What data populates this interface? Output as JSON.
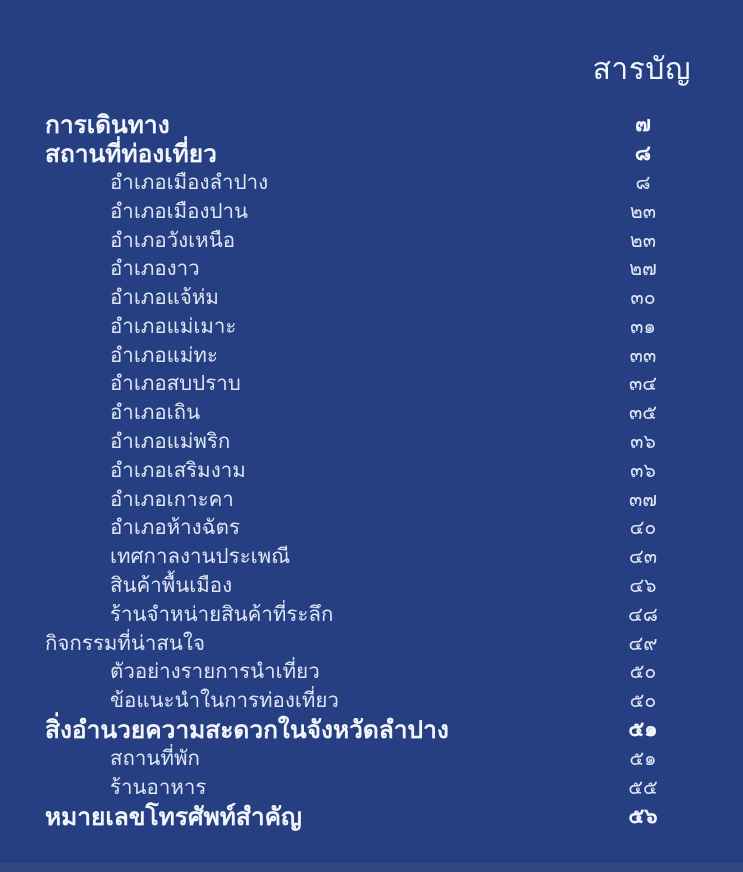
{
  "theme": {
    "background_color": "#263e82",
    "text_color": "#dfe6f3",
    "bold_text_color": "#f2f6fb",
    "bottom_edge_color": "#33497f"
  },
  "page": {
    "title": "สารบัญ"
  },
  "toc": {
    "entries": [
      {
        "label": "การเดินทาง",
        "page": "๗",
        "level": "main",
        "bold": true
      },
      {
        "label": "สถานที่ท่องเที่ยว",
        "page": "๘",
        "level": "main",
        "bold": true
      },
      {
        "label": "อำเภอเมืองลำปาง",
        "page": "๘",
        "level": "sub",
        "bold": false
      },
      {
        "label": "อำเภอเมืองปาน",
        "page": "๒๓",
        "level": "sub",
        "bold": false
      },
      {
        "label": "อำเภอวังเหนือ",
        "page": "๒๓",
        "level": "sub",
        "bold": false
      },
      {
        "label": "อำเภองาว",
        "page": "๒๗",
        "level": "sub",
        "bold": false
      },
      {
        "label": "อำเภอแจ้ห่ม",
        "page": "๓๐",
        "level": "sub",
        "bold": false
      },
      {
        "label": "อำเภอแม่เมาะ",
        "page": "๓๑",
        "level": "sub",
        "bold": false
      },
      {
        "label": "อำเภอแม่ทะ",
        "page": "๓๓",
        "level": "sub",
        "bold": false
      },
      {
        "label": "อำเภอสบปราบ",
        "page": "๓๔",
        "level": "sub",
        "bold": false
      },
      {
        "label": "อำเภอเถิน",
        "page": "๓๕",
        "level": "sub",
        "bold": false
      },
      {
        "label": "อำเภอแม่พริก",
        "page": "๓๖",
        "level": "sub",
        "bold": false
      },
      {
        "label": "อำเภอเสริมงาม",
        "page": "๓๖",
        "level": "sub",
        "bold": false
      },
      {
        "label": "อำเภอเกาะคา",
        "page": "๓๗",
        "level": "sub",
        "bold": false
      },
      {
        "label": "อำเภอห้างฉัตร",
        "page": "๔๐",
        "level": "sub",
        "bold": false
      },
      {
        "label": "เทศกาลงานประเพณี",
        "page": "๔๓",
        "level": "sub",
        "bold": false
      },
      {
        "label": "สินค้าพื้นเมือง",
        "page": "๔๖",
        "level": "sub",
        "bold": false
      },
      {
        "label": "ร้านจำหน่ายสินค้าที่ระลึก",
        "page": "๔๘",
        "level": "sub",
        "bold": false
      },
      {
        "label": "กิจกรรมที่น่าสนใจ",
        "page": "๔๙",
        "level": "main",
        "bold": false
      },
      {
        "label": "ตัวอย่างรายการนำเที่ยว",
        "page": "๕๐",
        "level": "sub",
        "bold": false
      },
      {
        "label": "ข้อแนะนำในการท่องเที่ยว",
        "page": "๕๐",
        "level": "sub",
        "bold": false
      },
      {
        "label": "สิ่งอำนวยความสะดวกในจังหวัดลำปาง",
        "page": "๕๑",
        "level": "main",
        "bold": true
      },
      {
        "label": "สถานที่พัก",
        "page": "๕๑",
        "level": "sub",
        "bold": false
      },
      {
        "label": "ร้านอาหาร",
        "page": "๕๕",
        "level": "sub",
        "bold": false
      },
      {
        "label": "หมายเลขโทรศัพท์สำคัญ",
        "page": "๕๖",
        "level": "main",
        "bold": true
      }
    ]
  }
}
